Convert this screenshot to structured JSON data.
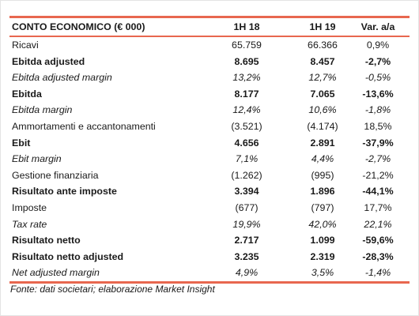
{
  "table": {
    "header": {
      "label": "CONTO ECONOMICO (€ 000)",
      "h18": "1H 18",
      "h19": "1H 19",
      "var": "Var. a/a"
    },
    "rows": [
      {
        "label": "Ricavi",
        "h18": "65.759",
        "h19": "66.366",
        "var": "0,9%",
        "style": "normal"
      },
      {
        "label": "Ebitda adjusted",
        "h18": "8.695",
        "h19": "8.457",
        "var": "-2,7%",
        "style": "bold"
      },
      {
        "label": "Ebitda adjusted margin",
        "h18": "13,2%",
        "h19": "12,7%",
        "var": "-0,5%",
        "style": "italic"
      },
      {
        "label": "Ebitda",
        "h18": "8.177",
        "h19": "7.065",
        "var": "-13,6%",
        "style": "bold"
      },
      {
        "label": "Ebitda margin",
        "h18": "12,4%",
        "h19": "10,6%",
        "var": "-1,8%",
        "style": "italic"
      },
      {
        "label": "Ammortamenti e accantonamenti",
        "h18": "(3.521)",
        "h19": "(4.174)",
        "var": "18,5%",
        "style": "normal"
      },
      {
        "label": "Ebit",
        "h18": "4.656",
        "h19": "2.891",
        "var": "-37,9%",
        "style": "bold"
      },
      {
        "label": "Ebit margin",
        "h18": "7,1%",
        "h19": "4,4%",
        "var": "-2,7%",
        "style": "italic"
      },
      {
        "label": "Gestione finanziaria",
        "h18": "(1.262)",
        "h19": "(995)",
        "var": "-21,2%",
        "style": "normal"
      },
      {
        "label": "Risultato ante imposte",
        "h18": "3.394",
        "h19": "1.896",
        "var": "-44,1%",
        "style": "bold"
      },
      {
        "label": "Imposte",
        "h18": "(677)",
        "h19": "(797)",
        "var": "17,7%",
        "style": "normal"
      },
      {
        "label": "Tax rate",
        "h18": "19,9%",
        "h19": "42,0%",
        "var": "22,1%",
        "style": "italic"
      },
      {
        "label": "Risultato netto",
        "h18": "2.717",
        "h19": "1.099",
        "var": "-59,6%",
        "style": "bold"
      },
      {
        "label": "Risultato netto adjusted",
        "h18": "3.235",
        "h19": "2.319",
        "var": "-28,3%",
        "style": "bold"
      },
      {
        "label": "Net adjusted margin",
        "h18": "4,9%",
        "h19": "3,5%",
        "var": "-1,4%",
        "style": "italic"
      }
    ]
  },
  "footnote": "Fonte: dati societari; elaborazione Market Insight",
  "colors": {
    "accent": "#e8674f"
  }
}
